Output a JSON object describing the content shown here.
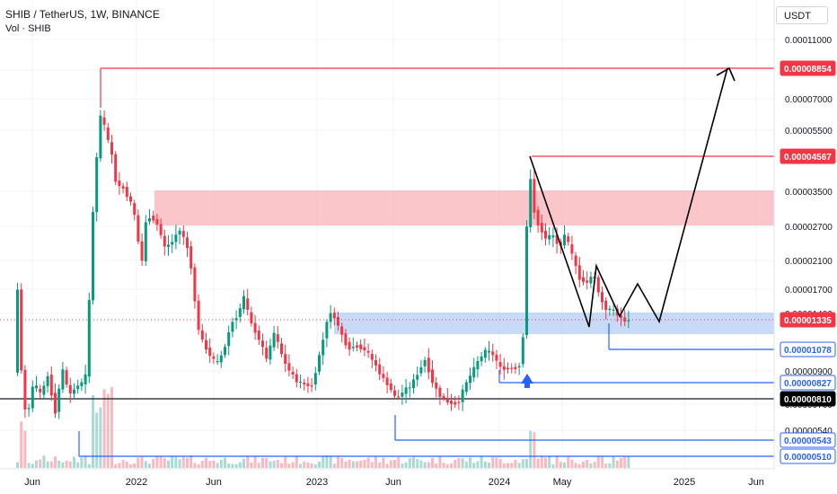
{
  "header": {
    "title": "SHIB / TetherUS, 1W, BINANCE",
    "subtitle": "Vol · SHIB",
    "currency_label": "USDT"
  },
  "chart_data": {
    "type": "candlestick",
    "symbol": "SHIB / TetherUS",
    "interval": "1W",
    "exchange": "BINANCE",
    "y_scale": "log",
    "ylim": [
      4.8e-06,
      1.2e-05
    ],
    "x_ticks": [
      "Jun",
      "2022",
      "Jun",
      "2023",
      "Jun",
      "2024",
      "May",
      "2025",
      "Jun"
    ],
    "price_ticks": [
      "0.00011000",
      "0.00007000",
      "0.00005500",
      "0.00003500",
      "0.00002700",
      "0.00002100",
      "0.00001700",
      "0.00001400",
      "0.00000900",
      "0.00000700",
      "0.00000540"
    ],
    "price_labels": [
      {
        "value": "0.00008854",
        "color": "#f23645",
        "style": "filled"
      },
      {
        "value": "0.00004567",
        "color": "#f23645",
        "style": "filled"
      },
      {
        "value": "0.00001335",
        "color": "#f23645",
        "style": "filled"
      },
      {
        "value": "0.00001078",
        "color": "#2962ff",
        "style": "outline"
      },
      {
        "value": "0.00000827",
        "color": "#2962ff",
        "style": "outline"
      },
      {
        "value": "0.00000810",
        "color": "#000000",
        "style": "filled"
      },
      {
        "value": "0.00000543",
        "color": "#2962ff",
        "style": "outline"
      },
      {
        "value": "0.00000510",
        "color": "#2962ff",
        "style": "outline"
      }
    ],
    "zones": [
      {
        "color": "#f7a8ad",
        "from": "0.00002700",
        "to": "0.00003500"
      },
      {
        "color": "#a9c7f5",
        "from": "0.00001235",
        "to": "0.00001400"
      }
    ],
    "up_color": "#089981",
    "down_color": "#f23645"
  }
}
